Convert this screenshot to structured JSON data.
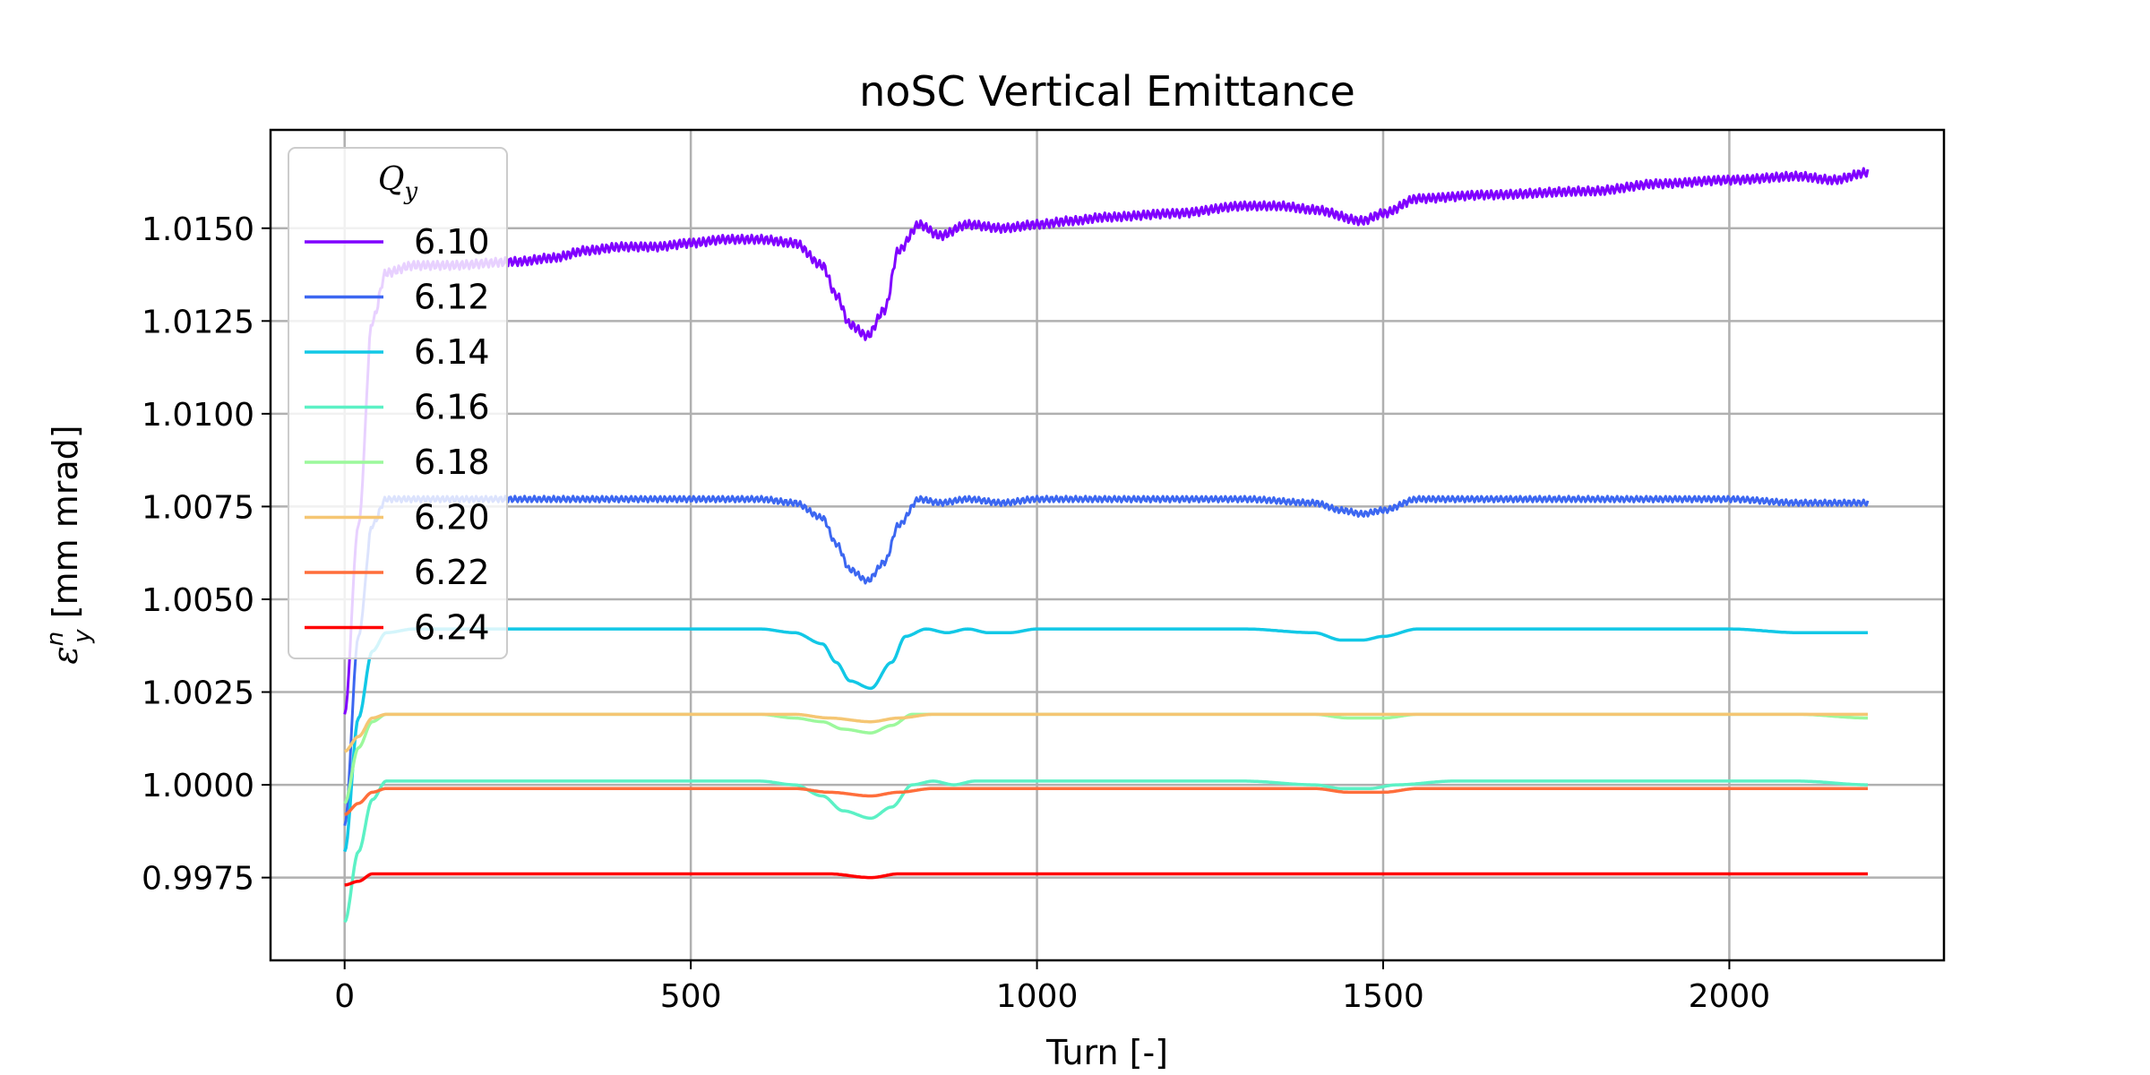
{
  "chart_data": {
    "type": "line",
    "title": "noSC Vertical Emittance",
    "xlabel": "Turn [-]",
    "ylabel": "ε_y^n [mm mrad]",
    "ylabel_parts": {
      "sym": "ε",
      "sub": "y",
      "sup": "n",
      "unit": "[mm mrad]"
    },
    "xlim": [
      -107,
      2310
    ],
    "ylim": [
      0.99527,
      1.01765
    ],
    "xticks": [
      0,
      500,
      1000,
      1500,
      2000
    ],
    "xtick_labels": [
      "0",
      "500",
      "1000",
      "1500",
      "2000"
    ],
    "yticks": [
      0.9975,
      1.0,
      1.0025,
      1.005,
      1.0075,
      1.01,
      1.0125,
      1.015
    ],
    "ytick_labels": [
      "0.9975",
      "1.0000",
      "1.0025",
      "1.0050",
      "1.0075",
      "1.0100",
      "1.0125",
      "1.0150"
    ],
    "grid": true,
    "legend": {
      "title": "Q",
      "title_sub": "y",
      "placement": "upper-left"
    },
    "series": [
      {
        "name": "6.10",
        "color": "#8000ff",
        "oscillation": 0.00012,
        "x": [
          0,
          20,
          40,
          60,
          100,
          150,
          250,
          300,
          350,
          400,
          450,
          500,
          550,
          600,
          650,
          690,
          710,
          730,
          755,
          780,
          800,
          830,
          860,
          900,
          950,
          1000,
          1050,
          1100,
          1200,
          1300,
          1350,
          1400,
          1470,
          1500,
          1550,
          1650,
          1800,
          1900,
          2000,
          2100,
          2150,
          2200
        ],
        "y": [
          1.0019,
          1.007,
          1.0125,
          1.0138,
          1.014,
          1.014,
          1.0141,
          1.0142,
          1.0144,
          1.0145,
          1.0145,
          1.0146,
          1.0147,
          1.0147,
          1.0146,
          1.014,
          1.0132,
          1.0124,
          1.0121,
          1.0128,
          1.0144,
          1.0151,
          1.0148,
          1.0151,
          1.015,
          1.0151,
          1.0152,
          1.0153,
          1.0154,
          1.0156,
          1.0156,
          1.0155,
          1.0152,
          1.0154,
          1.0158,
          1.0159,
          1.016,
          1.0162,
          1.0163,
          1.0164,
          1.0163,
          1.0165
        ]
      },
      {
        "name": "6.12",
        "color": "#3c67f1",
        "oscillation": 8e-05,
        "x": [
          0,
          20,
          40,
          60,
          100,
          200,
          300,
          400,
          500,
          600,
          650,
          690,
          710,
          730,
          755,
          780,
          800,
          830,
          860,
          900,
          950,
          1000,
          1050,
          1100,
          1200,
          1300,
          1400,
          1440,
          1470,
          1500,
          1550,
          1650,
          1800,
          1900,
          2000,
          2100,
          2200
        ],
        "y": [
          0.9989,
          1.004,
          1.007,
          1.0077,
          1.0077,
          1.0077,
          1.0077,
          1.0077,
          1.0077,
          1.0077,
          1.0076,
          1.0072,
          1.0065,
          1.0058,
          1.0055,
          1.006,
          1.007,
          1.0077,
          1.0076,
          1.0077,
          1.0076,
          1.0077,
          1.0077,
          1.0077,
          1.0077,
          1.0077,
          1.0076,
          1.0074,
          1.0073,
          1.0074,
          1.0077,
          1.0077,
          1.0077,
          1.0077,
          1.0077,
          1.0076,
          1.0076
        ]
      },
      {
        "name": "6.14",
        "color": "#12c8e6",
        "oscillation": 0,
        "x": [
          0,
          20,
          40,
          60,
          100,
          200,
          300,
          400,
          500,
          600,
          650,
          690,
          710,
          730,
          760,
          790,
          810,
          840,
          870,
          900,
          930,
          960,
          1000,
          1100,
          1200,
          1300,
          1400,
          1440,
          1470,
          1500,
          1550,
          1650,
          1800,
          1900,
          2000,
          2100,
          2200
        ],
        "y": [
          0.9982,
          1.0018,
          1.0036,
          1.0041,
          1.0042,
          1.0042,
          1.0042,
          1.0042,
          1.0042,
          1.0042,
          1.0041,
          1.0038,
          1.0033,
          1.0028,
          1.0026,
          1.0033,
          1.004,
          1.0042,
          1.0041,
          1.0042,
          1.0041,
          1.0041,
          1.0042,
          1.0042,
          1.0042,
          1.0042,
          1.0041,
          1.0039,
          1.0039,
          1.004,
          1.0042,
          1.0042,
          1.0042,
          1.0042,
          1.0042,
          1.0041,
          1.0041
        ]
      },
      {
        "name": "6.16",
        "color": "#5cf1c5",
        "oscillation": 0,
        "x": [
          0,
          20,
          40,
          60,
          80,
          100,
          200,
          300,
          400,
          500,
          600,
          650,
          690,
          720,
          760,
          790,
          820,
          850,
          880,
          910,
          950,
          1000,
          1100,
          1200,
          1300,
          1400,
          1440,
          1480,
          1520,
          1600,
          1700,
          1800,
          1900,
          2000,
          2100,
          2200
        ],
        "y": [
          0.9963,
          0.9982,
          0.9996,
          1.0001,
          1.0001,
          1.0001,
          1.0001,
          1.0001,
          1.0001,
          1.0001,
          1.0001,
          1.0,
          0.9997,
          0.9993,
          0.9991,
          0.9994,
          1.0,
          1.0001,
          1.0,
          1.0001,
          1.0001,
          1.0001,
          1.0001,
          1.0001,
          1.0001,
          1.0,
          0.9999,
          0.9999,
          1.0,
          1.0001,
          1.0001,
          1.0001,
          1.0001,
          1.0001,
          1.0001,
          1.0
        ]
      },
      {
        "name": "6.18",
        "color": "#9cf89c",
        "oscillation": 0,
        "x": [
          0,
          20,
          40,
          60,
          100,
          200,
          300,
          400,
          500,
          600,
          650,
          690,
          720,
          760,
          790,
          820,
          850,
          900,
          1000,
          1100,
          1200,
          1300,
          1400,
          1450,
          1500,
          1550,
          1700,
          1900,
          2100,
          2200
        ],
        "y": [
          0.9995,
          1.001,
          1.0017,
          1.0019,
          1.0019,
          1.0019,
          1.0019,
          1.0019,
          1.0019,
          1.0019,
          1.0018,
          1.0017,
          1.0015,
          1.0014,
          1.0016,
          1.0019,
          1.0019,
          1.0019,
          1.0019,
          1.0019,
          1.0019,
          1.0019,
          1.0019,
          1.0018,
          1.0018,
          1.0019,
          1.0019,
          1.0019,
          1.0019,
          1.0018
        ]
      },
      {
        "name": "6.20",
        "color": "#f5c673",
        "oscillation": 0,
        "x": [
          0,
          20,
          40,
          60,
          100,
          200,
          300,
          400,
          500,
          600,
          650,
          700,
          760,
          800,
          850,
          900,
          1000,
          1200,
          1400,
          1450,
          1500,
          1550,
          1800,
          2000,
          2200
        ],
        "y": [
          1.0009,
          1.0013,
          1.0018,
          1.0019,
          1.0019,
          1.0019,
          1.0019,
          1.0019,
          1.0019,
          1.0019,
          1.0019,
          1.0018,
          1.0017,
          1.0018,
          1.0019,
          1.0019,
          1.0019,
          1.0019,
          1.0019,
          1.0019,
          1.0019,
          1.0019,
          1.0019,
          1.0019,
          1.0019
        ]
      },
      {
        "name": "6.22",
        "color": "#ff6e3b",
        "oscillation": 0,
        "x": [
          0,
          20,
          40,
          60,
          100,
          200,
          300,
          400,
          500,
          600,
          650,
          700,
          760,
          800,
          850,
          900,
          1000,
          1200,
          1400,
          1450,
          1500,
          1550,
          1800,
          2000,
          2200
        ],
        "y": [
          0.9992,
          0.9995,
          0.9998,
          0.9999,
          0.9999,
          0.9999,
          0.9999,
          0.9999,
          0.9999,
          0.9999,
          0.9999,
          0.9998,
          0.9997,
          0.9998,
          0.9999,
          0.9999,
          0.9999,
          0.9999,
          0.9999,
          0.9998,
          0.9998,
          0.9999,
          0.9999,
          0.9999,
          0.9999
        ]
      },
      {
        "name": "6.24",
        "color": "#ff0000",
        "oscillation": 0,
        "x": [
          0,
          20,
          40,
          60,
          100,
          200,
          300,
          400,
          500,
          600,
          650,
          700,
          760,
          800,
          850,
          900,
          1000,
          1200,
          1400,
          1450,
          1500,
          1550,
          1800,
          2000,
          2200
        ],
        "y": [
          0.9973,
          0.9974,
          0.9976,
          0.9976,
          0.9976,
          0.9976,
          0.9976,
          0.9976,
          0.9976,
          0.9976,
          0.9976,
          0.9976,
          0.9975,
          0.9976,
          0.9976,
          0.9976,
          0.9976,
          0.9976,
          0.9976,
          0.9976,
          0.9976,
          0.9976,
          0.9976,
          0.9976,
          0.9976
        ]
      }
    ]
  }
}
